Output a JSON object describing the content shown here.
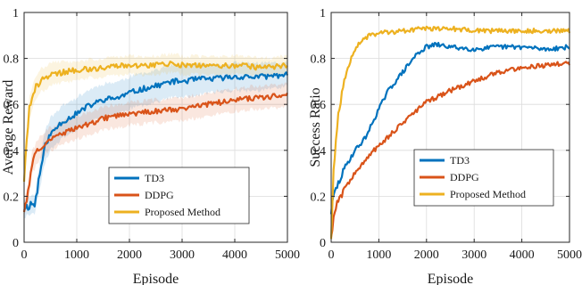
{
  "chart_data": [
    {
      "type": "line",
      "xlabel": "Episode",
      "ylabel": "Average Reward",
      "xlim": [
        0,
        5000
      ],
      "ylim": [
        0,
        1
      ],
      "xticks": [
        0,
        1000,
        2000,
        3000,
        4000,
        5000
      ],
      "yticks": [
        0,
        0.2,
        0.4,
        0.6,
        0.8,
        1
      ],
      "ytick_labels": [
        "0",
        "0.2",
        "0.4",
        "0.6",
        "0.8",
        "1"
      ],
      "grid": true,
      "legend_position": "bottom-right",
      "shaded_bands": true,
      "series": [
        {
          "name": "TD3",
          "color": "#0072BD",
          "x": [
            0,
            100,
            150,
            200,
            300,
            400,
            500,
            700,
            1000,
            1200,
            1500,
            1800,
            2000,
            2300,
            2500,
            2800,
            3000,
            3300,
            3500,
            4000,
            4500,
            5000
          ],
          "y": [
            0.15,
            0.16,
            0.17,
            0.16,
            0.3,
            0.42,
            0.47,
            0.52,
            0.56,
            0.59,
            0.62,
            0.63,
            0.65,
            0.67,
            0.68,
            0.7,
            0.7,
            0.71,
            0.71,
            0.72,
            0.72,
            0.73
          ],
          "band": [
            0.04,
            0.04,
            0.04,
            0.04,
            0.06,
            0.07,
            0.07,
            0.07,
            0.07,
            0.07,
            0.07,
            0.07,
            0.07,
            0.07,
            0.07,
            0.07,
            0.07,
            0.07,
            0.06,
            0.06,
            0.06,
            0.05
          ]
        },
        {
          "name": "DDPG",
          "color": "#D95319",
          "x": [
            0,
            100,
            150,
            300,
            500,
            800,
            1000,
            1300,
            1500,
            1800,
            2000,
            2500,
            3000,
            3500,
            4000,
            4500,
            5000
          ],
          "y": [
            0.14,
            0.25,
            0.35,
            0.41,
            0.45,
            0.48,
            0.5,
            0.52,
            0.54,
            0.55,
            0.56,
            0.57,
            0.58,
            0.6,
            0.62,
            0.63,
            0.64
          ],
          "band": [
            0.03,
            0.04,
            0.05,
            0.05,
            0.05,
            0.05,
            0.05,
            0.05,
            0.05,
            0.05,
            0.05,
            0.05,
            0.05,
            0.05,
            0.05,
            0.05,
            0.05
          ]
        },
        {
          "name": "Proposed Method",
          "color": "#EDB120",
          "x": [
            0,
            50,
            100,
            200,
            300,
            500,
            1000,
            1500,
            2000,
            2500,
            2800,
            3000,
            3500,
            4000,
            4500,
            5000
          ],
          "y": [
            0.27,
            0.45,
            0.58,
            0.66,
            0.7,
            0.73,
            0.75,
            0.76,
            0.77,
            0.77,
            0.78,
            0.77,
            0.77,
            0.77,
            0.76,
            0.77
          ],
          "band": [
            0.04,
            0.05,
            0.05,
            0.05,
            0.05,
            0.05,
            0.04,
            0.04,
            0.04,
            0.04,
            0.04,
            0.04,
            0.04,
            0.04,
            0.04,
            0.04
          ]
        }
      ]
    },
    {
      "type": "line",
      "xlabel": "Episode",
      "ylabel": "Success Ratio",
      "xlim": [
        0,
        5000
      ],
      "ylim": [
        0,
        1
      ],
      "xticks": [
        0,
        1000,
        2000,
        3000,
        4000,
        5000
      ],
      "yticks": [
        0,
        0.2,
        0.4,
        0.6,
        0.8,
        1
      ],
      "ytick_labels": [
        "0",
        "0.2",
        "0.4",
        "0.6",
        "0.8",
        "1"
      ],
      "grid": true,
      "legend_position": "middle-right",
      "shaded_bands": false,
      "series": [
        {
          "name": "TD3",
          "color": "#0072BD",
          "x": [
            0,
            50,
            100,
            200,
            300,
            500,
            700,
            800,
            1000,
            1200,
            1500,
            1800,
            2000,
            2200,
            2500,
            3000,
            3500,
            4000,
            4500,
            5000
          ],
          "y": [
            0.13,
            0.2,
            0.23,
            0.28,
            0.33,
            0.4,
            0.45,
            0.49,
            0.58,
            0.66,
            0.74,
            0.82,
            0.85,
            0.86,
            0.85,
            0.84,
            0.85,
            0.85,
            0.84,
            0.85
          ],
          "band": []
        },
        {
          "name": "DDPG",
          "color": "#D95319",
          "x": [
            0,
            50,
            100,
            200,
            300,
            500,
            700,
            800,
            1000,
            1500,
            2000,
            2500,
            3000,
            3500,
            4000,
            4500,
            5000
          ],
          "y": [
            0.03,
            0.1,
            0.16,
            0.2,
            0.24,
            0.3,
            0.35,
            0.38,
            0.42,
            0.52,
            0.61,
            0.66,
            0.7,
            0.74,
            0.76,
            0.77,
            0.78
          ],
          "band": []
        },
        {
          "name": "Proposed Method",
          "color": "#EDB120",
          "x": [
            0,
            50,
            100,
            150,
            200,
            300,
            400,
            500,
            600,
            800,
            1000,
            1500,
            2000,
            2500,
            3000,
            3500,
            4000,
            4500,
            5000
          ],
          "y": [
            0.02,
            0.3,
            0.45,
            0.55,
            0.62,
            0.72,
            0.79,
            0.84,
            0.87,
            0.9,
            0.91,
            0.92,
            0.93,
            0.93,
            0.92,
            0.92,
            0.92,
            0.92,
            0.92
          ],
          "band": []
        }
      ]
    }
  ]
}
